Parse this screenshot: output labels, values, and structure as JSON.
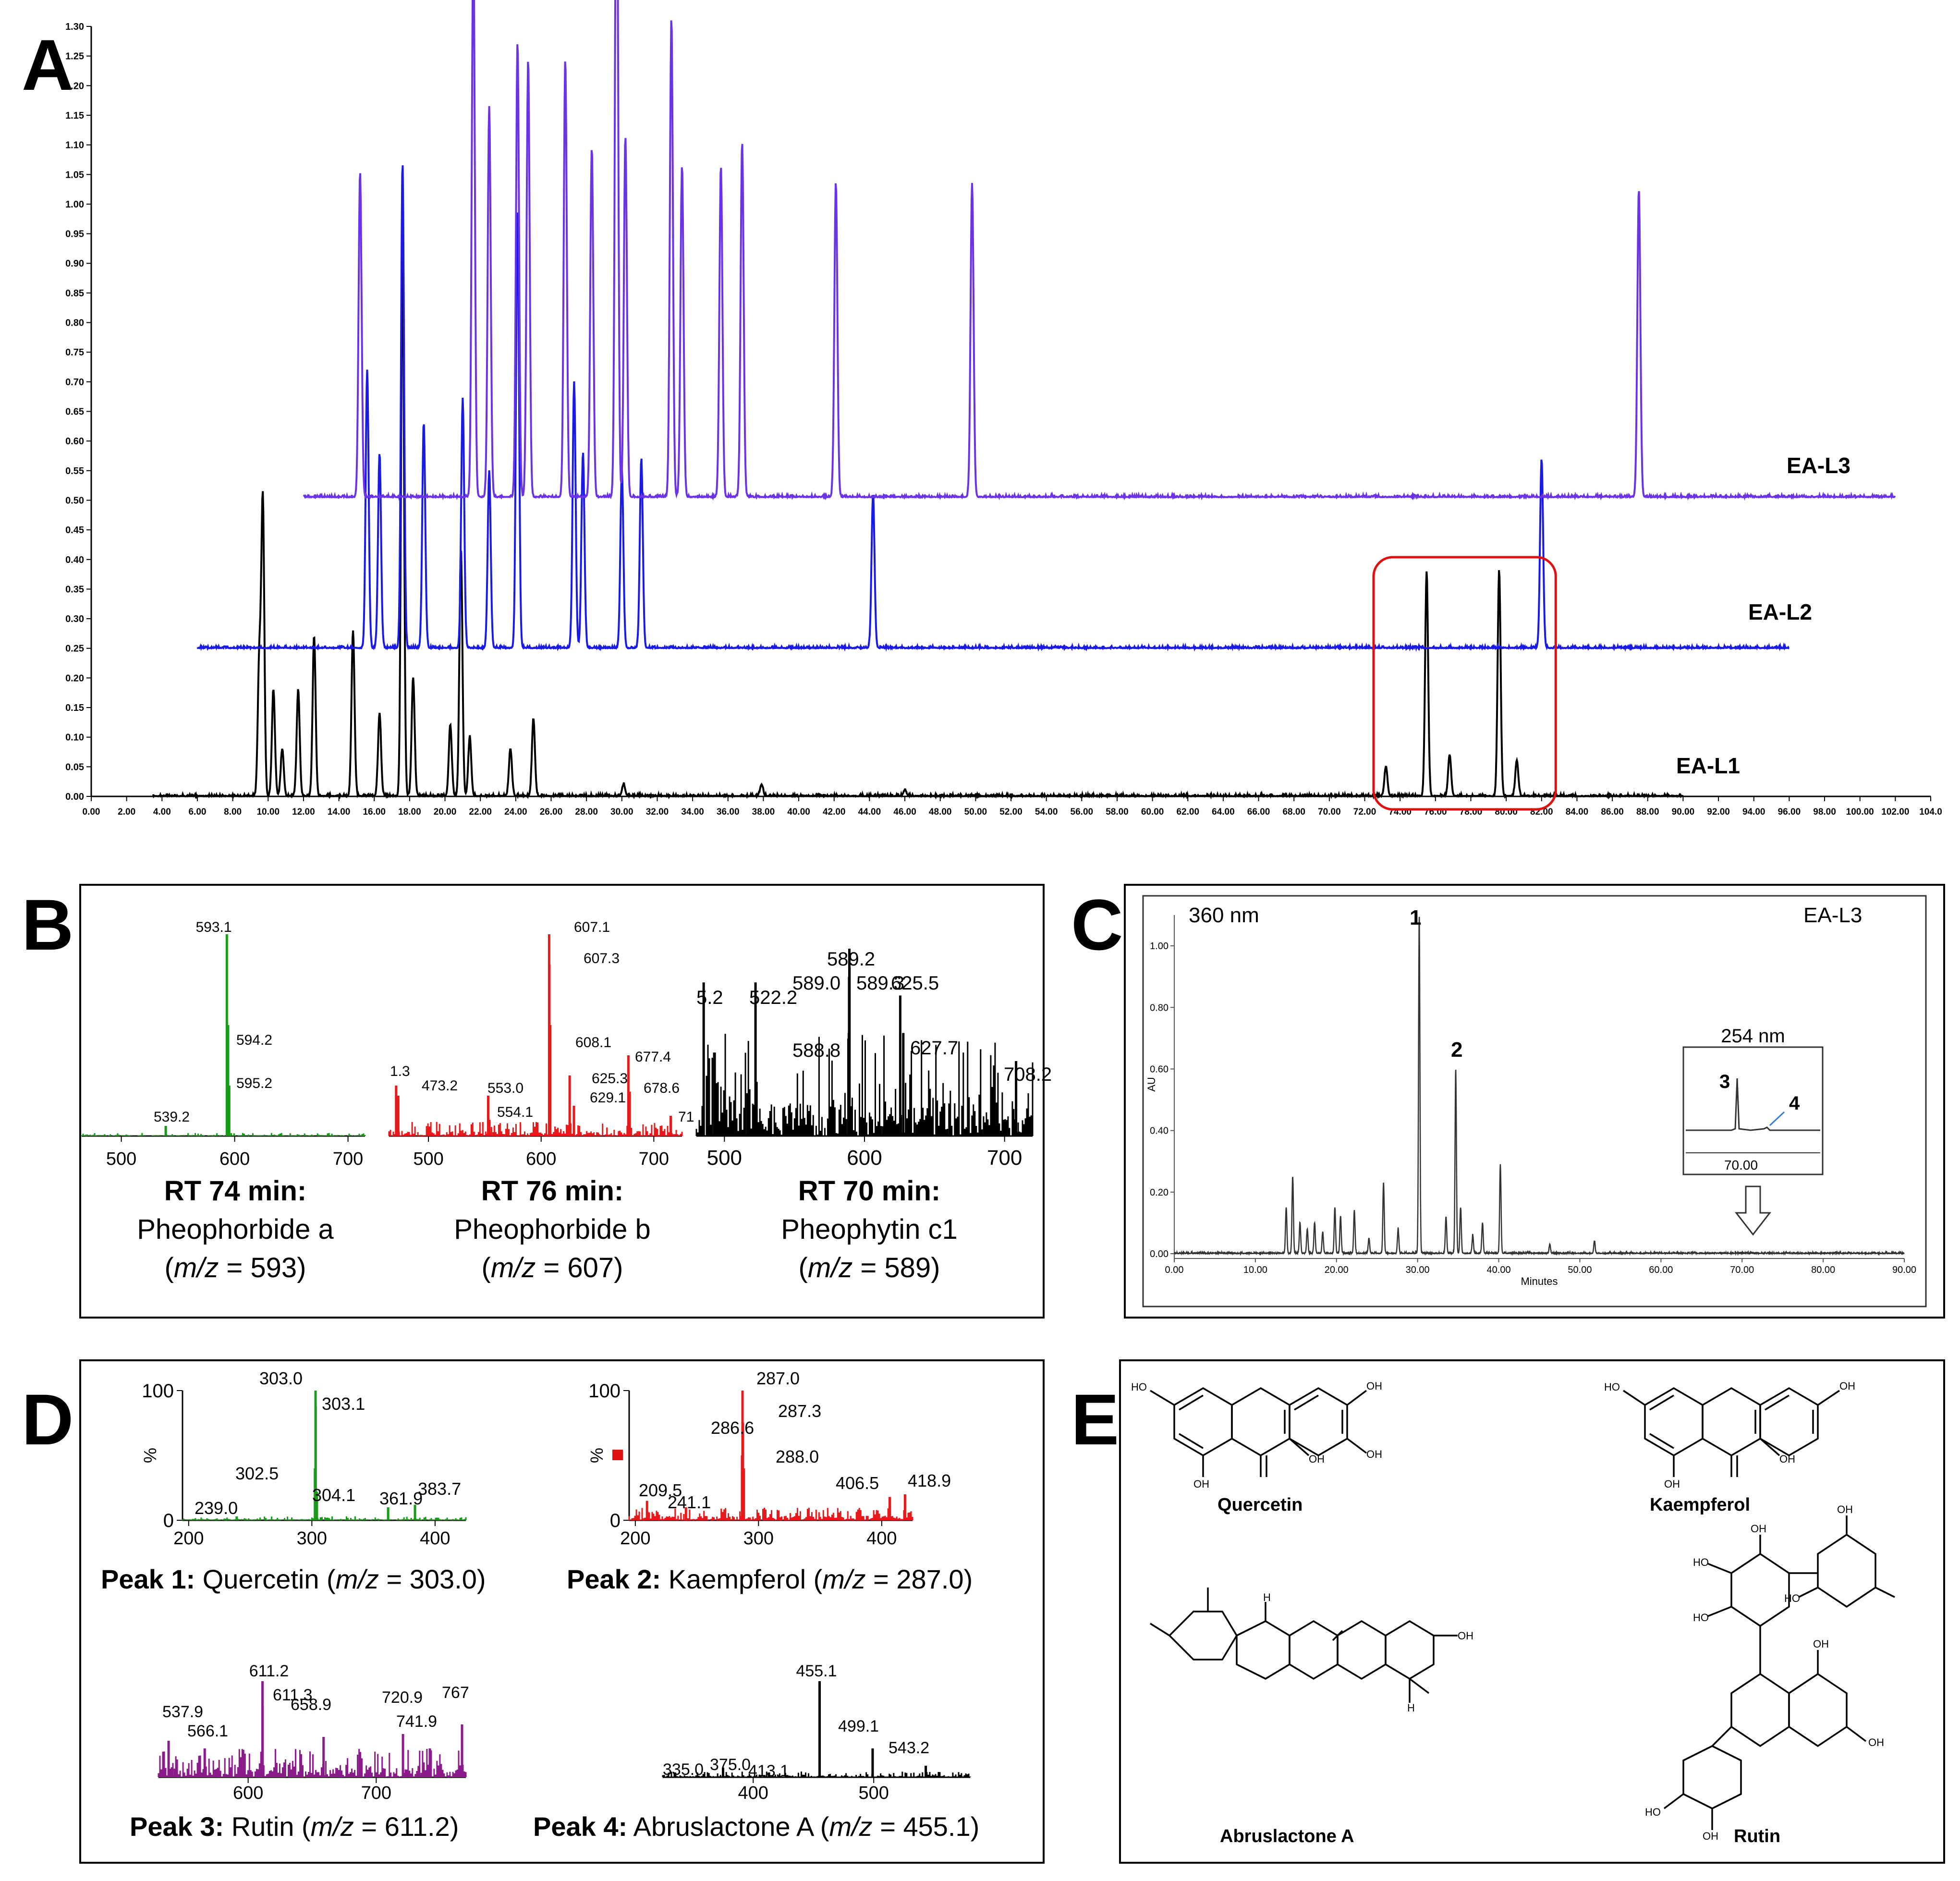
{
  "panels": {
    "A": "A",
    "B": "B",
    "C": "C",
    "D": "D",
    "E": "E"
  },
  "chart_data": [
    {
      "id": "A",
      "type": "line",
      "title": "",
      "xlabel": "",
      "ylabel": "",
      "xlim": [
        0,
        104
      ],
      "ylim": [
        0,
        1.3
      ],
      "x_ticks": [
        "0.00",
        "2.00",
        "4.00",
        "6.00",
        "8.00",
        "10.00",
        "12.00",
        "14.00",
        "16.00",
        "18.00",
        "20.00",
        "22.00",
        "24.00",
        "26.00",
        "28.00",
        "30.00",
        "32.00",
        "34.00",
        "36.00",
        "38.00",
        "40.00",
        "42.00",
        "44.00",
        "46.00",
        "48.00",
        "50.00",
        "52.00",
        "54.00",
        "56.00",
        "58.00",
        "60.00",
        "62.00",
        "64.00",
        "66.00",
        "68.00",
        "70.00",
        "72.00",
        "74.00",
        "76.00",
        "78.00",
        "80.00",
        "82.00",
        "84.00",
        "86.00",
        "88.00",
        "90.00",
        "92.00",
        "94.00",
        "96.00",
        "98.00",
        "100.00",
        "102.00",
        "104.0"
      ],
      "y_ticks": [
        "0.00",
        "0.05",
        "0.10",
        "0.15",
        "0.20",
        "0.25",
        "0.30",
        "0.35",
        "0.40",
        "0.45",
        "0.50",
        "0.55",
        "0.60",
        "0.65",
        "0.70",
        "0.75",
        "0.80",
        "0.85",
        "0.90",
        "0.95",
        "1.00",
        "1.05",
        "1.10",
        "1.15",
        "1.20",
        "1.25",
        "1.30"
      ],
      "series": [
        {
          "name": "EA-L1",
          "color": "#000000",
          "baseline": 0.0,
          "x_start": 3.5,
          "x_end": 90,
          "peaks": [
            [
              9.5,
              0.23
            ],
            [
              9.7,
              0.5
            ],
            [
              10.3,
              0.18
            ],
            [
              10.8,
              0.08
            ],
            [
              11.7,
              0.18
            ],
            [
              12.6,
              0.27
            ],
            [
              14.8,
              0.28
            ],
            [
              16.3,
              0.14
            ],
            [
              17.6,
              0.92
            ],
            [
              18.2,
              0.2
            ],
            [
              20.3,
              0.12
            ],
            [
              20.9,
              0.42
            ],
            [
              21.4,
              0.1
            ],
            [
              23.7,
              0.08
            ],
            [
              25.0,
              0.13
            ],
            [
              30.1,
              0.02
            ],
            [
              37.9,
              0.02
            ],
            [
              46.0,
              0.01
            ],
            [
              73.2,
              0.05
            ],
            [
              75.5,
              0.38
            ],
            [
              76.8,
              0.07
            ],
            [
              79.6,
              0.38
            ],
            [
              80.6,
              0.06
            ]
          ]
        },
        {
          "name": "EA-L2",
          "color": "#1a1ae6",
          "baseline": 0.25,
          "x_start": 6,
          "x_end": 96,
          "peaks": [
            [
              15.6,
              0.47
            ],
            [
              16.3,
              0.33
            ],
            [
              17.6,
              0.82
            ],
            [
              18.8,
              0.38
            ],
            [
              21.0,
              0.42
            ],
            [
              22.5,
              0.3
            ],
            [
              24.1,
              0.74
            ],
            [
              27.3,
              0.45
            ],
            [
              27.8,
              0.33
            ],
            [
              30.0,
              0.3
            ],
            [
              31.1,
              0.32
            ],
            [
              44.2,
              0.26
            ],
            [
              82.0,
              0.32
            ]
          ]
        },
        {
          "name": "EA-L3",
          "color": "#6b33e6",
          "baseline": 0.505,
          "x_start": 12,
          "x_end": 102,
          "peaks": [
            [
              15.2,
              0.55
            ],
            [
              21.6,
              0.95
            ],
            [
              22.5,
              0.66
            ],
            [
              24.1,
              0.77
            ],
            [
              24.7,
              0.74
            ],
            [
              26.8,
              0.74
            ],
            [
              28.3,
              0.59
            ],
            [
              29.7,
              1.24
            ],
            [
              30.2,
              0.61
            ],
            [
              32.8,
              0.81
            ],
            [
              33.4,
              0.56
            ],
            [
              35.6,
              0.56
            ],
            [
              36.8,
              0.6
            ],
            [
              42.1,
              0.53
            ],
            [
              49.8,
              0.53
            ],
            [
              87.5,
              0.52
            ]
          ]
        }
      ],
      "annotation": "red box 72.5–82.8 min"
    },
    {
      "id": "B1",
      "type": "line",
      "color": "#1a9a1a",
      "xlim": [
        465,
        715
      ],
      "x_ticks": [
        "500",
        "600",
        "700"
      ],
      "peaks": [
        [
          539.2,
          0.05
        ],
        [
          593.1,
          1.0
        ],
        [
          594.2,
          0.55
        ],
        [
          595.2,
          0.25
        ]
      ],
      "labels": [
        "593.1",
        "594.2",
        "595.2",
        "539.2"
      ],
      "caption": {
        "rt": "RT 74 min:",
        "name": "Pheophorbide a",
        "mz": "593"
      }
    },
    {
      "id": "B2",
      "type": "line",
      "color": "#e61a1a",
      "xlim": [
        465,
        725
      ],
      "x_ticks": [
        "500",
        "600",
        "700"
      ],
      "peaks": [
        [
          471.3,
          0.25
        ],
        [
          473.2,
          0.2
        ],
        [
          553.0,
          0.2
        ],
        [
          554.1,
          0.08
        ],
        [
          607.1,
          1.0
        ],
        [
          607.3,
          0.85
        ],
        [
          608.1,
          0.55
        ],
        [
          625.3,
          0.3
        ],
        [
          629.1,
          0.15
        ],
        [
          677.4,
          0.4
        ],
        [
          678.6,
          0.22
        ],
        [
          715,
          0.1
        ]
      ],
      "labels": [
        "1.3",
        "473.2",
        "553.0",
        "554.1",
        "607.1",
        "607.3",
        "608.1",
        "625.3",
        "629.1",
        "677.4",
        "678.6",
        "71"
      ],
      "caption": {
        "rt": "RT 76 min:",
        "name": "Pheophorbide b",
        "mz": "607"
      }
    },
    {
      "id": "B3",
      "type": "line",
      "color": "#000000",
      "xlim": [
        480,
        720
      ],
      "x_ticks": [
        "500",
        "600",
        "700"
      ],
      "peaks": [
        [
          485.2,
          0.82
        ],
        [
          522.2,
          0.82
        ],
        [
          588.8,
          0.55
        ],
        [
          589.0,
          0.85
        ],
        [
          589.2,
          1.0
        ],
        [
          589.3,
          0.9
        ],
        [
          625.5,
          0.75
        ],
        [
          627.7,
          0.55
        ],
        [
          708.2,
          0.4
        ]
      ],
      "labels": [
        "5.2",
        "522.2",
        "589.2",
        "589.0",
        "589.3",
        "588.8",
        "625.5",
        "627.7",
        "708.2"
      ],
      "caption": {
        "rt": "RT 70 min:",
        "name": "Pheophytin c1",
        "mz": "589"
      }
    },
    {
      "id": "C",
      "type": "line",
      "color": "#333333",
      "title": "EA-L3",
      "wavelength": "360  nm",
      "xlabel": "Minutes",
      "ylabel": "AU",
      "xlim": [
        0,
        90
      ],
      "ylim": [
        0,
        1.1
      ],
      "x_ticks": [
        "0.00",
        "10.00",
        "20.00",
        "30.00",
        "40.00",
        "50.00",
        "60.00",
        "70.00",
        "80.00",
        "90.00"
      ],
      "y_ticks": [
        "0.00",
        "0.20",
        "0.40",
        "0.60",
        "0.80",
        "1.00"
      ],
      "peaks": [
        [
          13.8,
          0.15
        ],
        [
          14.6,
          0.25
        ],
        [
          15.5,
          0.1
        ],
        [
          16.4,
          0.08
        ],
        [
          17.3,
          0.1
        ],
        [
          18.3,
          0.07
        ],
        [
          19.8,
          0.15
        ],
        [
          20.5,
          0.12
        ],
        [
          22.2,
          0.14
        ],
        [
          24.0,
          0.05
        ],
        [
          25.8,
          0.23
        ],
        [
          27.6,
          0.08
        ],
        [
          30.2,
          1.1
        ],
        [
          33.5,
          0.12
        ],
        [
          34.7,
          0.6
        ],
        [
          35.3,
          0.15
        ],
        [
          36.8,
          0.06
        ],
        [
          38.0,
          0.1
        ],
        [
          40.2,
          0.29
        ],
        [
          46.3,
          0.03
        ],
        [
          51.8,
          0.04
        ]
      ],
      "peak_labels": [
        "1",
        "2"
      ],
      "inset": {
        "title": "254  nm",
        "x_tick": "70.00",
        "peak_labels": [
          "3",
          "4"
        ]
      }
    },
    {
      "id": "D1",
      "type": "line",
      "color": "#1a9a1a",
      "ylabel": "%",
      "xlim": [
        195,
        425
      ],
      "x_ticks": [
        "200",
        "300",
        "400"
      ],
      "y_ticks": [
        "0",
        "100"
      ],
      "peaks": [
        [
          239.0,
          0.03
        ],
        [
          302.5,
          0.4
        ],
        [
          303.0,
          1.0
        ],
        [
          303.1,
          0.88
        ],
        [
          304.1,
          0.22
        ],
        [
          361.9,
          0.1
        ],
        [
          383.7,
          0.12
        ]
      ],
      "labels": [
        "303.0",
        "303.1",
        "302.5",
        "304.1",
        "239.0",
        "361.9",
        "383.7"
      ],
      "caption": {
        "peak": "Peak 1:",
        "name": "Quercetin",
        "mz": "303.0"
      }
    },
    {
      "id": "D2",
      "type": "line",
      "color": "#e61a1a",
      "ylabel": "%",
      "xlim": [
        195,
        425
      ],
      "x_ticks": [
        "200",
        "300",
        "400"
      ],
      "y_ticks": [
        "0",
        "100"
      ],
      "peaks": [
        [
          209.5,
          0.15
        ],
        [
          241.1,
          0.1
        ],
        [
          286.6,
          0.5
        ],
        [
          287.0,
          1.0
        ],
        [
          287.3,
          0.75
        ],
        [
          288.0,
          0.4
        ],
        [
          406.5,
          0.18
        ],
        [
          418.9,
          0.2
        ]
      ],
      "labels": [
        "287.0",
        "287.3",
        "286.6",
        "288.0",
        "209.5",
        "241.1",
        "406.5",
        "418.9"
      ],
      "caption": {
        "peak": "Peak 2:",
        "name": "Kaempferol",
        "mz": "287.0"
      }
    },
    {
      "id": "D3",
      "type": "line",
      "color": "#8b1a8b",
      "xlim": [
        530,
        770
      ],
      "x_ticks": [
        "600",
        "700"
      ],
      "peaks": [
        [
          537.9,
          0.38
        ],
        [
          566.1,
          0.3
        ],
        [
          611.2,
          1.0
        ],
        [
          611.3,
          0.75
        ],
        [
          658.9,
          0.42
        ],
        [
          720.9,
          0.45
        ],
        [
          741.9,
          0.3
        ],
        [
          767,
          0.55
        ]
      ],
      "labels": [
        "611.2",
        "611.3",
        "537.9",
        "566.1",
        "658.9",
        "720.9",
        "741.9",
        "767"
      ],
      "caption": {
        "peak": "Peak 3:",
        "name": "Rutin",
        "mz": "611.2"
      }
    },
    {
      "id": "D4",
      "type": "line",
      "color": "#000000",
      "xlim": [
        325,
        580
      ],
      "x_ticks": [
        "400",
        "500"
      ],
      "peaks": [
        [
          335.0,
          0.05
        ],
        [
          375.0,
          0.1
        ],
        [
          413.1,
          0.05
        ],
        [
          455.1,
          1.0
        ],
        [
          499.1,
          0.3
        ],
        [
          543.2,
          0.12
        ]
      ],
      "labels": [
        "455.1",
        "499.1",
        "543.2",
        "335.0",
        "375.0",
        "413.1"
      ],
      "caption": {
        "peak": "Peak 4:",
        "name": "Abruslactone A",
        "mz": "455.1"
      }
    }
  ],
  "structures": {
    "quercetin": "Quercetin",
    "kaempferol": "Kaempferol",
    "abruslactone": "Abruslactone A",
    "rutin": "Rutin",
    "oh": "OH",
    "ho": "HO",
    "h": "H"
  },
  "captions": {
    "mz_label": "m/z",
    "eq": " = "
  }
}
